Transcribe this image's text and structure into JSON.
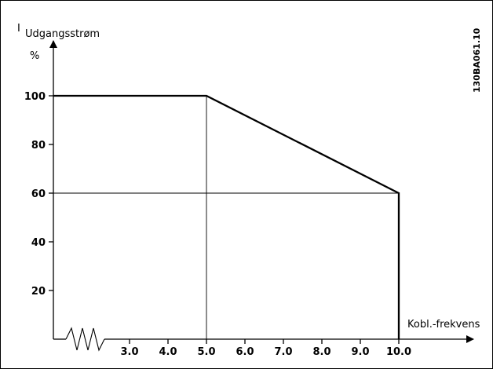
{
  "chart_data": {
    "type": "line",
    "ylabel_symbol": "I",
    "ylabel_subscript": "Udgangsstrøm",
    "yunit": "%",
    "xlabel": "Kobl.-frekvens",
    "figure_code": "130BA061.10",
    "x": [
      2.0,
      5.0,
      10.0,
      10.0
    ],
    "y": [
      100,
      100,
      60,
      0
    ],
    "xticks": [
      {
        "value": 3.0,
        "label": "3.0"
      },
      {
        "value": 4.0,
        "label": "4.0"
      },
      {
        "value": 5.0,
        "label": "5.0"
      },
      {
        "value": 6.0,
        "label": "6.0"
      },
      {
        "value": 7.0,
        "label": "7.0"
      },
      {
        "value": 8.0,
        "label": "8.0"
      },
      {
        "value": 9.0,
        "label": "9.0"
      },
      {
        "value": 10.0,
        "label": "10.0"
      }
    ],
    "yticks": [
      {
        "value": 20,
        "label": "20"
      },
      {
        "value": 40,
        "label": "40"
      },
      {
        "value": 60,
        "label": "60"
      },
      {
        "value": 80,
        "label": "80"
      },
      {
        "value": 100,
        "label": "100"
      }
    ],
    "guides": [
      {
        "x": 5.0,
        "y": 100
      },
      {
        "x": 10.0,
        "y": 60
      }
    ],
    "xlim": [
      2.0,
      11.0
    ],
    "ylim": [
      0,
      100
    ],
    "axis_break": true,
    "grid": false
  }
}
